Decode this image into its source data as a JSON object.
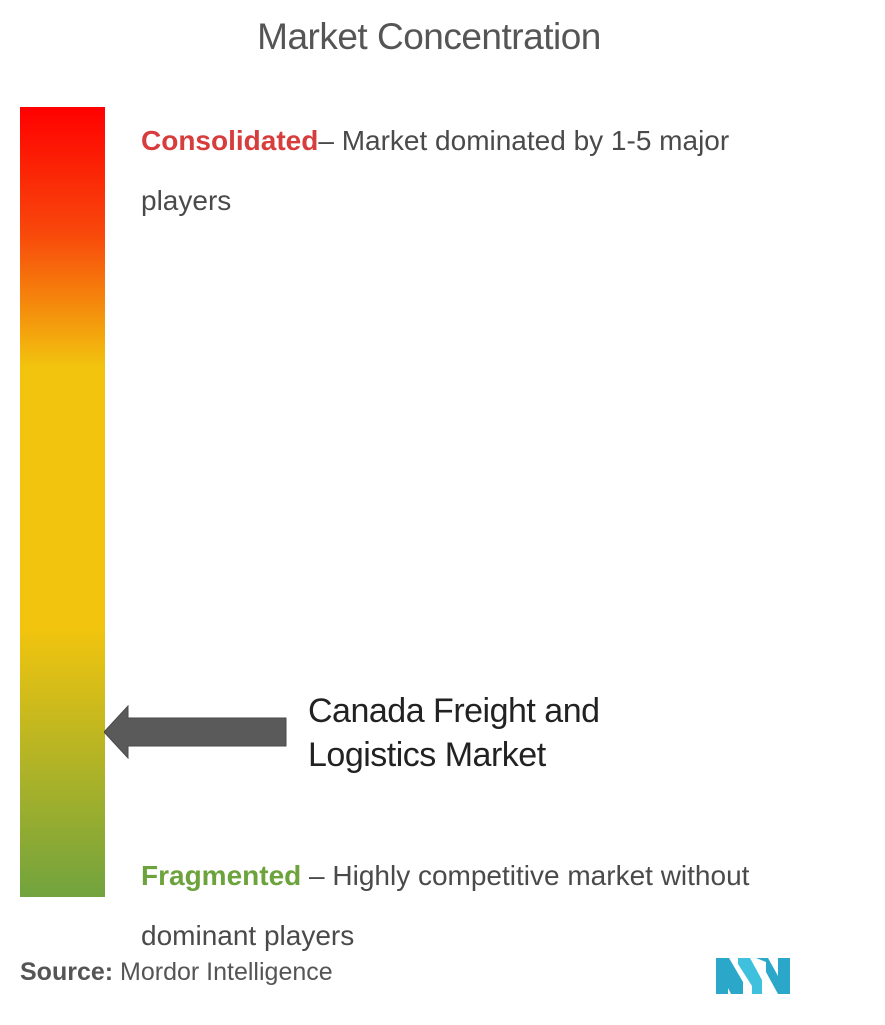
{
  "chart_data": {
    "type": "gradient-scale",
    "title": "Market Concentration",
    "scale": {
      "top_color": "#ff0000",
      "middle_color": "#f2c40e",
      "bottom_color": "#71a33e"
    },
    "top_label": {
      "key": "Consolidated",
      "key_color": "#d83d3d",
      "text": "– Market dominated by 1-5 major players"
    },
    "bottom_label": {
      "key": "Fragmented",
      "key_color": "#6da33d",
      "text": " – Highly competitive market without dominant players"
    },
    "marker": {
      "label": "Canada Freight and Logistics Market",
      "position_fraction_from_top": 0.79
    }
  },
  "source": {
    "key": "Source:",
    "text": " Mordor Intelligence"
  },
  "logo": {
    "icon": "mordor-intelligence-logo-icon",
    "color": "#2aa7c9"
  }
}
